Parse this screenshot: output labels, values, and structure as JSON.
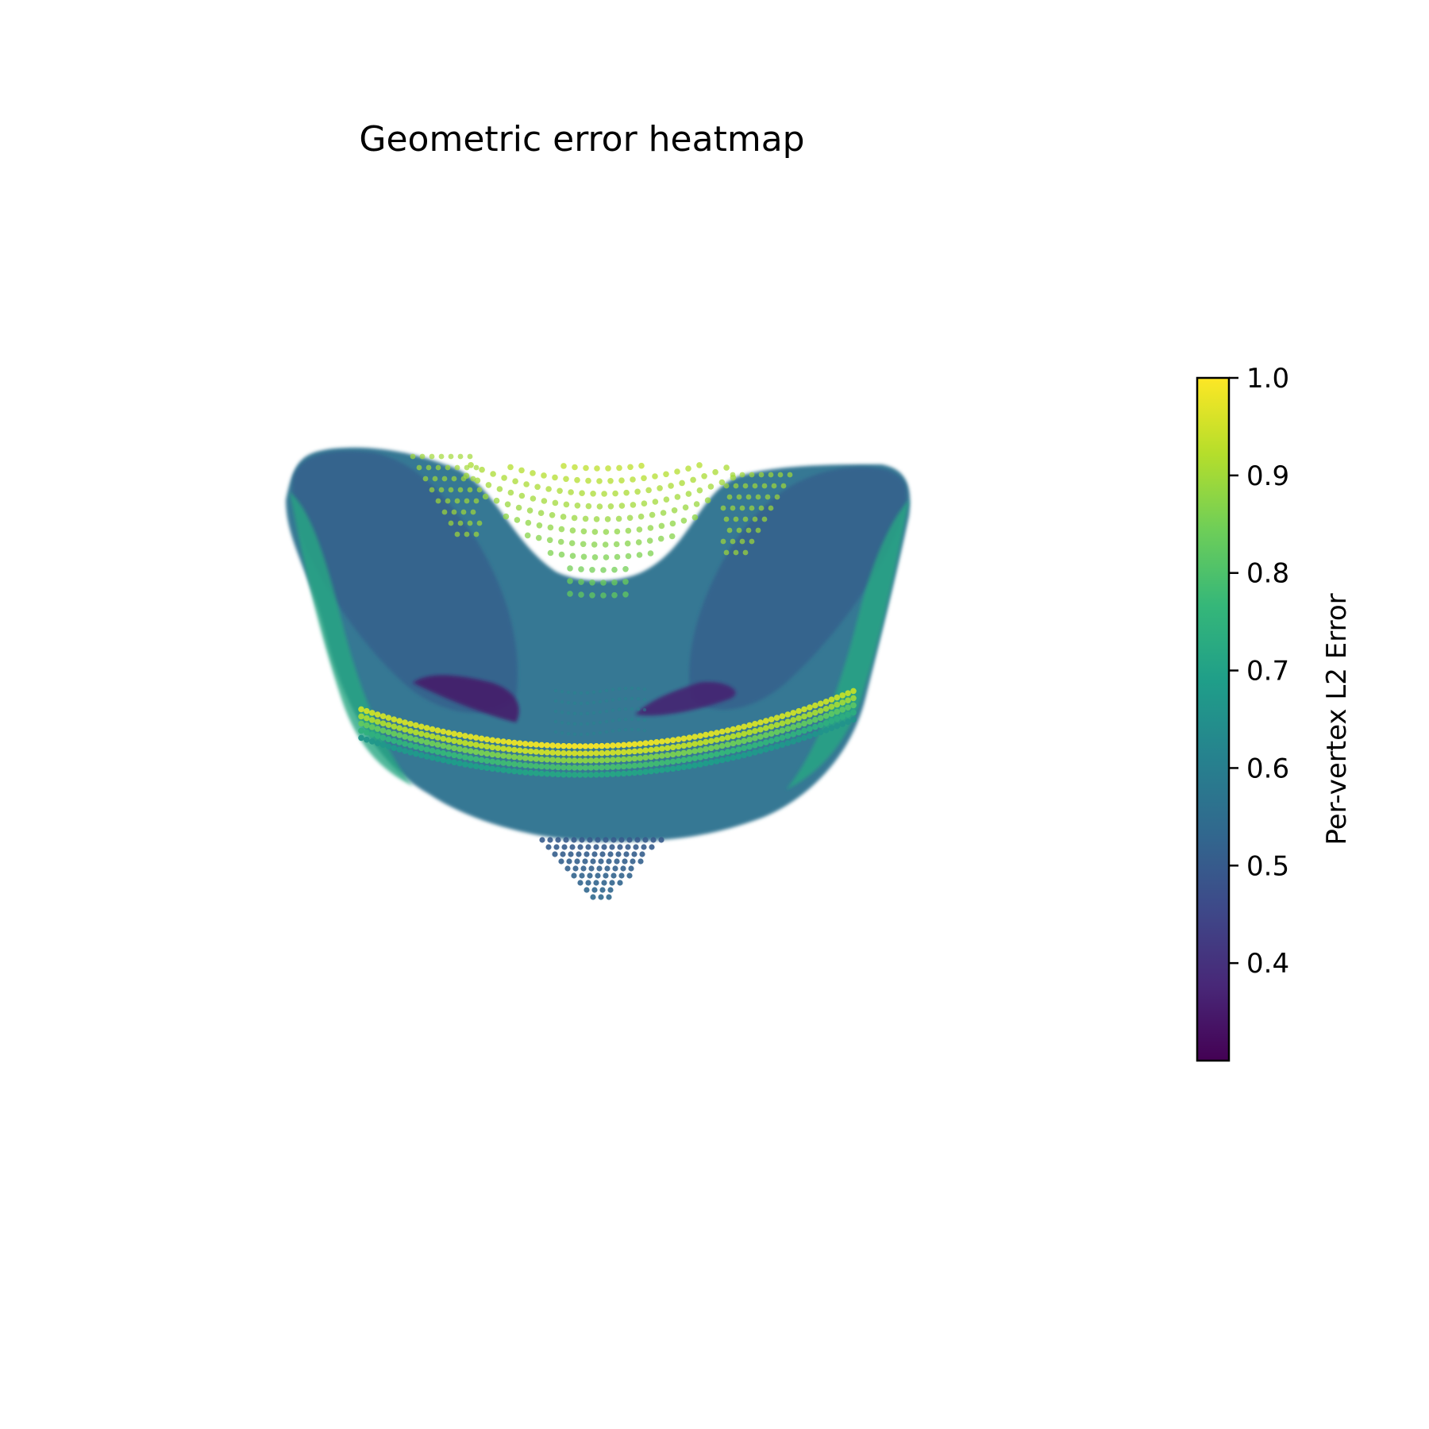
{
  "chart_data": {
    "type": "scatter",
    "title": "Geometric error heatmap",
    "subtitle": "",
    "xlabel": "",
    "ylabel": "",
    "axes_visible": false,
    "grid": false,
    "colormap": "viridis",
    "colorbar": {
      "label": "Per-vertex L2 Error",
      "vmin": 0.3,
      "vmax": 1.0,
      "ticks": [
        0.4,
        0.5,
        0.6,
        0.7,
        0.8,
        0.9,
        1.0
      ],
      "tick_labels": [
        "0.4",
        "0.5",
        "0.6",
        "0.7",
        "0.8",
        "0.9",
        "1.0"
      ],
      "placement": "right"
    },
    "viridis_stops": [
      "#440154",
      "#482878",
      "#3e4989",
      "#31688e",
      "#26828e",
      "#1f9e89",
      "#35b779",
      "#6ece58",
      "#b5de2b",
      "#fde725"
    ]
  }
}
